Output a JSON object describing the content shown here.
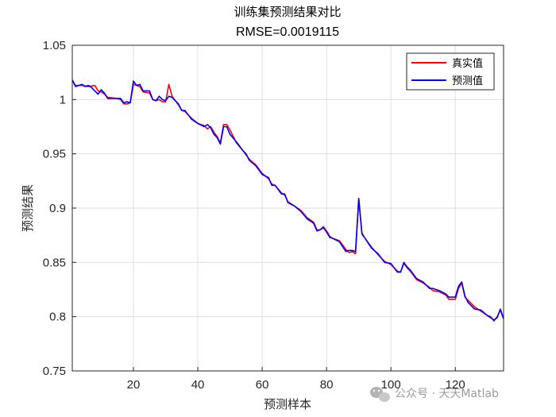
{
  "chart_data": {
    "type": "line",
    "title": "训练集预测结果对比",
    "subtitle": "RMSE=0.0019115",
    "xlabel": "预测样本",
    "ylabel": "预测结果",
    "xlim": [
      1,
      135
    ],
    "ylim": [
      0.75,
      1.05
    ],
    "xticks": [
      20,
      40,
      60,
      80,
      100,
      120
    ],
    "yticks": [
      0.75,
      0.8,
      0.85,
      0.9,
      0.95,
      1,
      1.05
    ],
    "ytick_labels": [
      "0.75",
      "0.8",
      "0.85",
      "0.9",
      "0.95",
      "1",
      "1.05"
    ],
    "grid": true,
    "legend_position": "top-right",
    "series": [
      {
        "name": "真实值",
        "color": "#ff0000",
        "points": [
          [
            1,
            1.018
          ],
          [
            2,
            1.013
          ],
          [
            4,
            1.013
          ],
          [
            6,
            1.012
          ],
          [
            8,
            1.013
          ],
          [
            9,
            1.008
          ],
          [
            10,
            1.007
          ],
          [
            11,
            1.005
          ],
          [
            12,
            1.002
          ],
          [
            15,
            1.001
          ],
          [
            16,
            1.0
          ],
          [
            17,
            0.996
          ],
          [
            18,
            0.996
          ],
          [
            19,
            0.997
          ],
          [
            20,
            1.014
          ],
          [
            21,
            1.013
          ],
          [
            22,
            1.012
          ],
          [
            23,
            1.007
          ],
          [
            25,
            1.006
          ],
          [
            26,
            1.0
          ],
          [
            27,
            0.999
          ],
          [
            28,
            1.0
          ],
          [
            29,
            0.998
          ],
          [
            30,
            0.998
          ],
          [
            31,
            1.014
          ],
          [
            32,
            1.003
          ],
          [
            34,
            0.995
          ],
          [
            35,
            0.99
          ],
          [
            36,
            0.989
          ],
          [
            38,
            0.983
          ],
          [
            40,
            0.978
          ],
          [
            42,
            0.976
          ],
          [
            43,
            0.973
          ],
          [
            44,
            0.975
          ],
          [
            45,
            0.97
          ],
          [
            46,
            0.966
          ],
          [
            47,
            0.96
          ],
          [
            48,
            0.977
          ],
          [
            49,
            0.977
          ],
          [
            50,
            0.972
          ],
          [
            52,
            0.96
          ],
          [
            54,
            0.953
          ],
          [
            55,
            0.949
          ],
          [
            56,
            0.945
          ],
          [
            58,
            0.94
          ],
          [
            60,
            0.932
          ],
          [
            62,
            0.927
          ],
          [
            63,
            0.922
          ],
          [
            64,
            0.921
          ],
          [
            66,
            0.914
          ],
          [
            67,
            0.912
          ],
          [
            68,
            0.906
          ],
          [
            70,
            0.902
          ],
          [
            72,
            0.898
          ],
          [
            74,
            0.891
          ],
          [
            76,
            0.887
          ],
          [
            77,
            0.88
          ],
          [
            78,
            0.88
          ],
          [
            79,
            0.883
          ],
          [
            80,
            0.879
          ],
          [
            81,
            0.874
          ],
          [
            82,
            0.872
          ],
          [
            84,
            0.87
          ],
          [
            86,
            0.862
          ],
          [
            87,
            0.859
          ],
          [
            88,
            0.86
          ],
          [
            89,
            0.858
          ],
          [
            90,
            0.908
          ],
          [
            91,
            0.877
          ],
          [
            92,
            0.872
          ],
          [
            94,
            0.864
          ],
          [
            96,
            0.857
          ],
          [
            98,
            0.851
          ],
          [
            100,
            0.848
          ],
          [
            102,
            0.842
          ],
          [
            103,
            0.841
          ],
          [
            104,
            0.849
          ],
          [
            105,
            0.845
          ],
          [
            106,
            0.842
          ],
          [
            108,
            0.834
          ],
          [
            110,
            0.831
          ],
          [
            112,
            0.827
          ],
          [
            113,
            0.824
          ],
          [
            115,
            0.823
          ],
          [
            117,
            0.82
          ],
          [
            118,
            0.816
          ],
          [
            120,
            0.816
          ],
          [
            121,
            0.826
          ],
          [
            122,
            0.831
          ],
          [
            123,
            0.818
          ],
          [
            124,
            0.815
          ],
          [
            126,
            0.809
          ],
          [
            128,
            0.805
          ],
          [
            130,
            0.801
          ],
          [
            131,
            0.8
          ],
          [
            132,
            0.796
          ],
          [
            133,
            0.8
          ],
          [
            134,
            0.806
          ],
          [
            135,
            0.798
          ]
        ]
      },
      {
        "name": "预测值",
        "color": "#0000ff",
        "points": [
          [
            1,
            1.018
          ],
          [
            2,
            1.012
          ],
          [
            4,
            1.014
          ],
          [
            5,
            1.012
          ],
          [
            6,
            1.013
          ],
          [
            7,
            1.011
          ],
          [
            9,
            1.005
          ],
          [
            10,
            1.009
          ],
          [
            11,
            1.006
          ],
          [
            12,
            1.001
          ],
          [
            15,
            1.001
          ],
          [
            16,
            1.001
          ],
          [
            17,
            0.997
          ],
          [
            18,
            0.998
          ],
          [
            19,
            0.997
          ],
          [
            20,
            1.017
          ],
          [
            21,
            1.013
          ],
          [
            22,
            1.014
          ],
          [
            23,
            1.008
          ],
          [
            25,
            1.008
          ],
          [
            26,
            1.0
          ],
          [
            27,
            0.999
          ],
          [
            28,
            1.003
          ],
          [
            29,
            1.0
          ],
          [
            30,
            0.999
          ],
          [
            31,
            1.003
          ],
          [
            32,
            1.002
          ],
          [
            34,
            0.996
          ],
          [
            35,
            0.99
          ],
          [
            36,
            0.99
          ],
          [
            38,
            0.982
          ],
          [
            40,
            0.978
          ],
          [
            42,
            0.975
          ],
          [
            43,
            0.977
          ],
          [
            44,
            0.974
          ],
          [
            45,
            0.968
          ],
          [
            46,
            0.965
          ],
          [
            47,
            0.959
          ],
          [
            48,
            0.975
          ],
          [
            49,
            0.975
          ],
          [
            50,
            0.968
          ],
          [
            52,
            0.961
          ],
          [
            54,
            0.953
          ],
          [
            55,
            0.95
          ],
          [
            56,
            0.944
          ],
          [
            58,
            0.939
          ],
          [
            60,
            0.931
          ],
          [
            62,
            0.928
          ],
          [
            63,
            0.921
          ],
          [
            64,
            0.921
          ],
          [
            66,
            0.913
          ],
          [
            67,
            0.913
          ],
          [
            68,
            0.905
          ],
          [
            70,
            0.902
          ],
          [
            72,
            0.897
          ],
          [
            74,
            0.89
          ],
          [
            76,
            0.886
          ],
          [
            77,
            0.879
          ],
          [
            78,
            0.88
          ],
          [
            79,
            0.882
          ],
          [
            80,
            0.878
          ],
          [
            81,
            0.873
          ],
          [
            82,
            0.872
          ],
          [
            84,
            0.869
          ],
          [
            86,
            0.86
          ],
          [
            87,
            0.861
          ],
          [
            88,
            0.861
          ],
          [
            89,
            0.86
          ],
          [
            90,
            0.909
          ],
          [
            91,
            0.876
          ],
          [
            92,
            0.872
          ],
          [
            94,
            0.863
          ],
          [
            96,
            0.858
          ],
          [
            98,
            0.85
          ],
          [
            100,
            0.849
          ],
          [
            102,
            0.841
          ],
          [
            103,
            0.841
          ],
          [
            104,
            0.85
          ],
          [
            105,
            0.846
          ],
          [
            106,
            0.843
          ],
          [
            108,
            0.835
          ],
          [
            110,
            0.832
          ],
          [
            112,
            0.826
          ],
          [
            113,
            0.826
          ],
          [
            115,
            0.824
          ],
          [
            117,
            0.821
          ],
          [
            118,
            0.818
          ],
          [
            120,
            0.818
          ],
          [
            121,
            0.828
          ],
          [
            122,
            0.832
          ],
          [
            123,
            0.819
          ],
          [
            124,
            0.813
          ],
          [
            126,
            0.807
          ],
          [
            128,
            0.806
          ],
          [
            130,
            0.801
          ],
          [
            131,
            0.799
          ],
          [
            132,
            0.797
          ],
          [
            133,
            0.799
          ],
          [
            134,
            0.807
          ],
          [
            135,
            0.798
          ]
        ]
      }
    ]
  },
  "watermark": {
    "text": "公众号 · 天天Matlab",
    "icon": "wechat-icon"
  }
}
